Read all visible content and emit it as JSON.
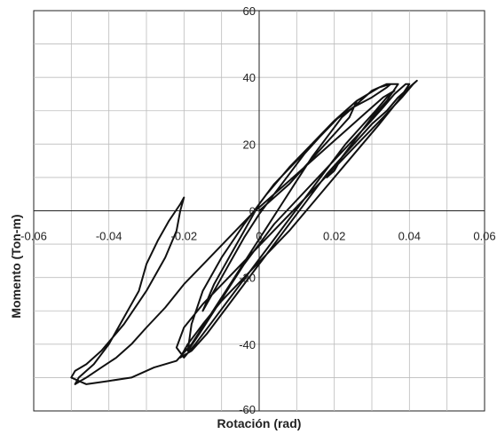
{
  "chart_data": {
    "type": "line",
    "title": "",
    "xlabel": "Rotación (rad)",
    "ylabel": "Momento (Ton-m)",
    "xlim": [
      -0.06,
      0.06
    ],
    "ylim": [
      -60,
      60
    ],
    "x_ticks": [
      -0.06,
      -0.04,
      -0.02,
      0,
      0.02,
      0.04,
      0.06
    ],
    "x_tick_labels": [
      "-0.06",
      "-0.04",
      "-0.02",
      "0",
      "0.02",
      "0.04",
      "0.06"
    ],
    "y_ticks": [
      -60,
      -40,
      -20,
      0,
      20,
      40,
      60
    ],
    "y_tick_labels": [
      "-60",
      "-40",
      "-20",
      "0",
      "20",
      "40",
      "60"
    ],
    "grid": true,
    "minor_grid_x_step": 0.01,
    "minor_grid_y_step": 10,
    "line_color": "#111111",
    "series": [
      {
        "x": [
          0,
          0.003,
          0.008,
          0.012,
          0.016,
          0.02,
          0.024,
          0.026,
          0.022,
          0.016,
          0.01,
          0.004,
          0,
          -0.004,
          -0.008,
          -0.012,
          -0.015,
          -0.012,
          -0.008,
          -0.004,
          0,
          0.004,
          0.008,
          0.012,
          0.016,
          0.02,
          0.025,
          0.03,
          0.034,
          0.035,
          0.032,
          0.026,
          0.02,
          0.014,
          0.008,
          0.002,
          -0.004,
          -0.01,
          -0.015,
          -0.018,
          -0.019,
          -0.016,
          -0.012,
          -0.008,
          -0.004,
          0,
          0.004,
          0.009,
          0.014,
          0.019,
          0.024,
          0.029,
          0.033,
          0.036,
          0.039,
          0.04,
          0.037,
          0.032,
          0.026,
          0.02,
          0.014,
          0.008,
          0.002,
          -0.004,
          -0.01,
          -0.015,
          -0.019,
          -0.021,
          -0.018,
          -0.014,
          -0.01,
          -0.006,
          -0.002,
          0.002,
          0.006,
          0.01,
          0.014,
          0.018,
          0.022,
          0.026,
          0.03,
          0.034,
          0.037,
          0.04,
          0.042,
          0.041,
          0.038,
          0.033,
          0.027,
          0.021,
          0.015,
          0.009,
          0.003,
          -0.003,
          -0.009,
          -0.015,
          -0.02,
          -0.022,
          -0.02,
          -0.017,
          -0.013,
          -0.009,
          -0.005,
          -0.001,
          0.003,
          0.007,
          0.011,
          0.015,
          0.019,
          0.023,
          0.027,
          0.031,
          0.034,
          0.036,
          0.033,
          0.028,
          0.022,
          0.016,
          0.01,
          0.004,
          -0.002,
          -0.008,
          -0.014,
          -0.02,
          -0.025,
          -0.03,
          -0.034,
          -0.038,
          -0.042,
          -0.046,
          -0.049,
          -0.048,
          -0.044,
          -0.04,
          -0.036,
          -0.032,
          -0.03,
          -0.027,
          -0.024,
          -0.021,
          -0.02,
          -0.021,
          -0.022,
          -0.025,
          -0.03,
          -0.036,
          -0.042,
          -0.046,
          -0.049,
          -0.05,
          -0.046,
          -0.04,
          -0.034,
          -0.028,
          -0.022,
          -0.018,
          -0.014,
          -0.01,
          -0.006,
          -0.002,
          0.002,
          0.006,
          0.01,
          0.014,
          0.018,
          0.022,
          0.026,
          0.03,
          0.034,
          0.037,
          0.034,
          0.03,
          0.026,
          0.022,
          0.02,
          0.018
        ],
        "y": [
          0,
          3,
          8,
          13,
          18,
          23,
          28,
          33,
          29,
          22,
          15,
          8,
          2,
          -6,
          -14,
          -22,
          -30,
          -24,
          -16,
          -8,
          -1,
          5,
          11,
          17,
          22,
          27,
          31,
          34,
          37,
          38,
          37,
          33,
          27,
          20,
          13,
          5,
          -4,
          -14,
          -24,
          -34,
          -42,
          -37,
          -30,
          -23,
          -16,
          -10,
          -4,
          2,
          8,
          14,
          20,
          26,
          31,
          35,
          38,
          38,
          33,
          26,
          18,
          10,
          2,
          -6,
          -13,
          -20,
          -27,
          -34,
          -40,
          -44,
          -42,
          -37,
          -31,
          -25,
          -19,
          -13,
          -7,
          -1,
          5,
          11,
          16,
          21,
          26,
          30,
          34,
          37,
          39,
          38,
          34,
          28,
          21,
          14,
          7,
          0,
          -7,
          -14,
          -21,
          -28,
          -35,
          -41,
          -44,
          -40,
          -34,
          -28,
          -22,
          -16,
          -10,
          -4,
          2,
          8,
          14,
          20,
          25,
          30,
          34,
          36,
          34,
          29,
          23,
          17,
          11,
          5,
          -1,
          -8,
          -15,
          -22,
          -29,
          -35,
          -40,
          -44,
          -47,
          -50,
          -52,
          -50,
          -46,
          -40,
          -32,
          -24,
          -16,
          -9,
          -3,
          2,
          4,
          0,
          -6,
          -14,
          -24,
          -34,
          -42,
          -46,
          -48,
          -50,
          -52,
          -51,
          -50,
          -47,
          -45,
          -40,
          -33,
          -26,
          -19,
          -12,
          -5,
          2,
          9,
          16,
          22,
          28,
          32,
          36,
          38,
          38,
          33,
          28,
          22,
          16,
          12,
          10
        ]
      }
    ]
  }
}
